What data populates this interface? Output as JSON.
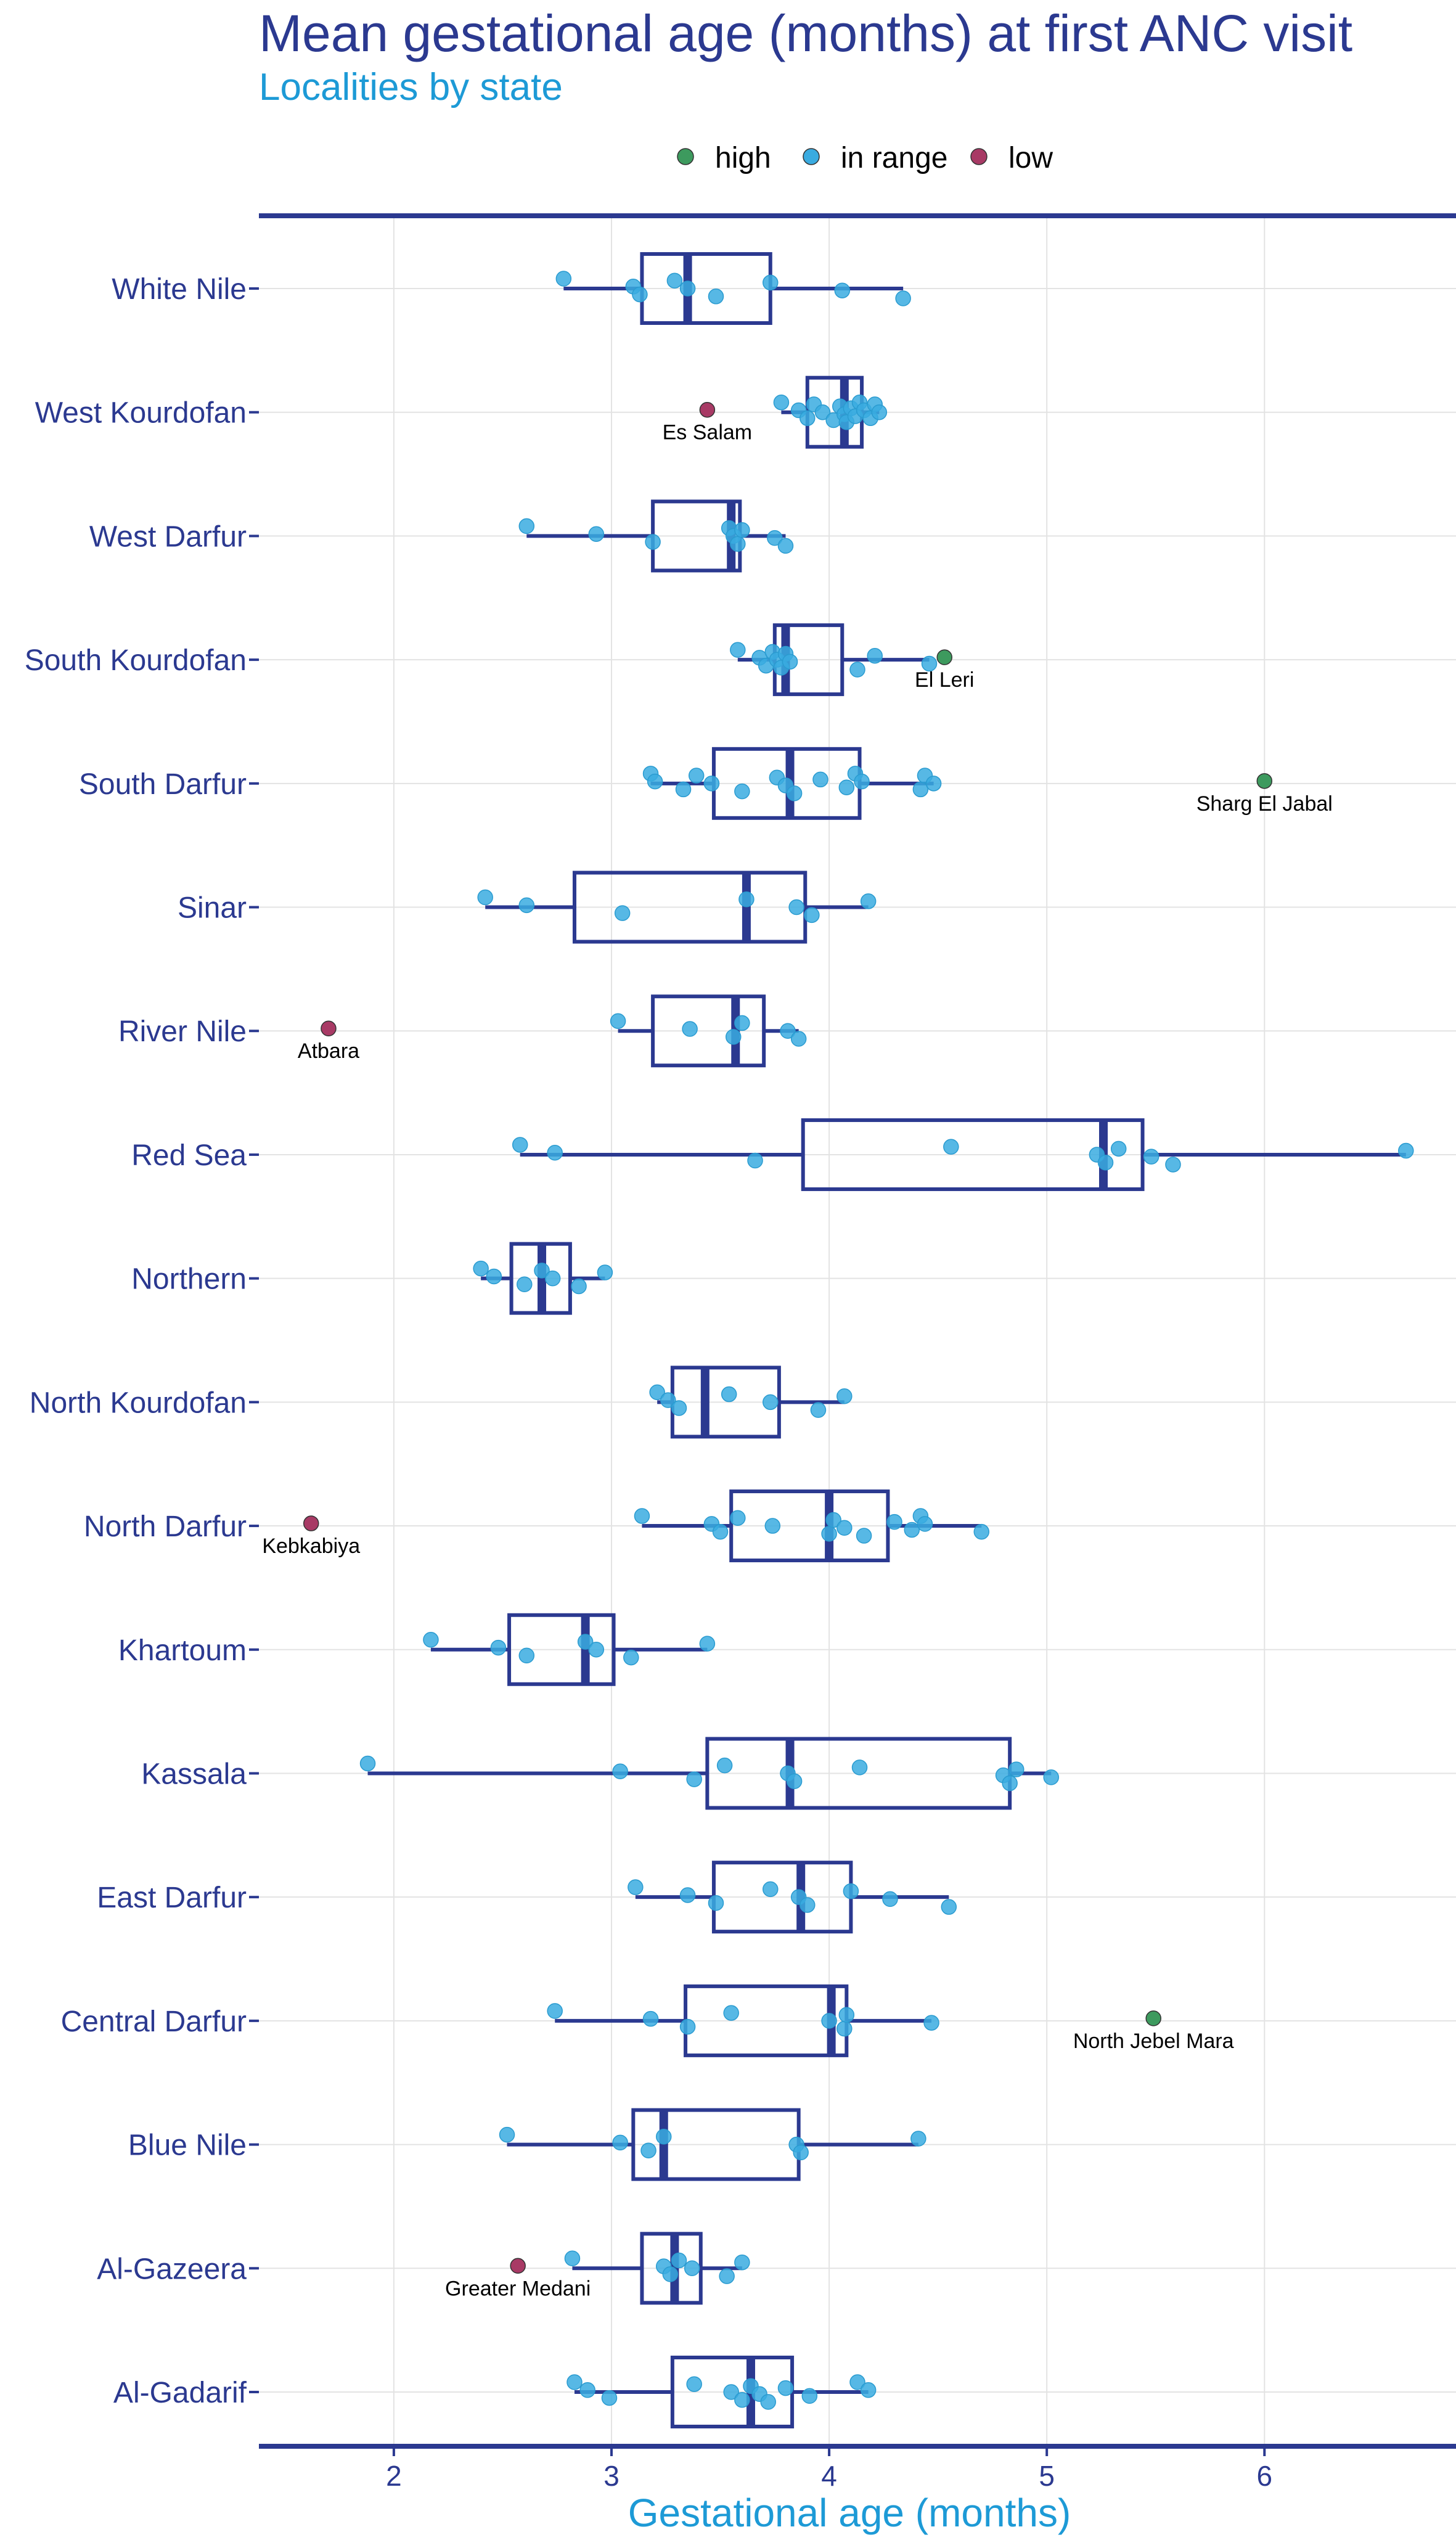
{
  "chart_data": {
    "type": "box",
    "title": "Mean gestational age (months) at first ANC visit",
    "subtitle": "Localities by state",
    "xlabel": "Gestational age (months)",
    "ylabel": "",
    "xlim": [
      1.38,
      6.88
    ],
    "xticks": [
      2,
      3,
      4,
      5,
      6
    ],
    "grid": true,
    "legend": {
      "position": "top",
      "entries": [
        {
          "name": "high",
          "color": "#3d9a5e"
        },
        {
          "name": "in range",
          "color": "#3aabe0"
        },
        {
          "name": "low",
          "color": "#a83a65"
        }
      ]
    },
    "colors": {
      "box": "#2b3990",
      "in_range": "#3aabe0",
      "high": "#3d9a5e",
      "low": "#a83a65"
    },
    "categories": [
      "White Nile",
      "West Kourdofan",
      "West Darfur",
      "South Kourdofan",
      "South Darfur",
      "Sinar",
      "River Nile",
      "Red Sea",
      "Northern",
      "North Kourdofan",
      "North Darfur",
      "Khartoum",
      "Kassala",
      "East Darfur",
      "Central Darfur",
      "Blue Nile",
      "Al-Gazeera",
      "Al-Gadarif"
    ],
    "boxes": [
      {
        "state": "White Nile",
        "whisker_low": 2.78,
        "q1": 3.14,
        "median": 3.35,
        "q3": 3.73,
        "whisker_high": 4.34,
        "points": [
          2.78,
          3.1,
          3.13,
          3.29,
          3.35,
          3.48,
          3.73,
          4.06,
          4.34
        ]
      },
      {
        "state": "West Kourdofan",
        "whisker_low": 3.78,
        "q1": 3.9,
        "median": 4.07,
        "q3": 4.15,
        "whisker_high": 4.23,
        "points": [
          3.78,
          3.86,
          3.9,
          3.93,
          3.97,
          4.02,
          4.05,
          4.07,
          4.08,
          4.1,
          4.12,
          4.14,
          4.16,
          4.19,
          4.21,
          4.23
        ]
      },
      {
        "state": "West Darfur",
        "whisker_low": 2.61,
        "q1": 3.19,
        "median": 3.55,
        "q3": 3.59,
        "whisker_high": 3.8,
        "points": [
          2.61,
          2.93,
          3.19,
          3.54,
          3.56,
          3.58,
          3.6,
          3.75,
          3.8
        ]
      },
      {
        "state": "South Kourdofan",
        "whisker_low": 3.58,
        "q1": 3.75,
        "median": 3.8,
        "q3": 4.06,
        "whisker_high": 4.46,
        "points": [
          3.58,
          3.68,
          3.71,
          3.74,
          3.76,
          3.78,
          3.8,
          3.82,
          4.13,
          4.21,
          4.46
        ]
      },
      {
        "state": "South Darfur",
        "whisker_low": 3.18,
        "q1": 3.47,
        "median": 3.82,
        "q3": 4.14,
        "whisker_high": 4.48,
        "points": [
          3.18,
          3.2,
          3.33,
          3.39,
          3.46,
          3.6,
          3.76,
          3.8,
          3.84,
          3.96,
          4.08,
          4.12,
          4.15,
          4.42,
          4.44,
          4.48
        ]
      },
      {
        "state": "Sinar",
        "whisker_low": 2.42,
        "q1": 2.83,
        "median": 3.62,
        "q3": 3.89,
        "whisker_high": 4.18,
        "points": [
          2.42,
          2.61,
          3.05,
          3.62,
          3.85,
          3.92,
          4.18
        ]
      },
      {
        "state": "River Nile",
        "whisker_low": 3.03,
        "q1": 3.19,
        "median": 3.57,
        "q3": 3.7,
        "whisker_high": 3.86,
        "points": [
          3.03,
          3.36,
          3.56,
          3.6,
          3.81,
          3.86
        ]
      },
      {
        "state": "Red Sea",
        "whisker_low": 2.58,
        "q1": 3.88,
        "median": 5.26,
        "q3": 5.44,
        "whisker_high": 6.65,
        "points": [
          2.58,
          2.74,
          3.66,
          4.56,
          5.23,
          5.27,
          5.33,
          5.48,
          5.58,
          6.65
        ]
      },
      {
        "state": "Northern",
        "whisker_low": 2.4,
        "q1": 2.54,
        "median": 2.68,
        "q3": 2.81,
        "whisker_high": 2.97,
        "points": [
          2.4,
          2.46,
          2.6,
          2.68,
          2.73,
          2.85,
          2.97
        ]
      },
      {
        "state": "North Kourdofan",
        "whisker_low": 3.21,
        "q1": 3.28,
        "median": 3.43,
        "q3": 3.77,
        "whisker_high": 4.07,
        "points": [
          3.21,
          3.26,
          3.31,
          3.54,
          3.73,
          3.95,
          4.07
        ]
      },
      {
        "state": "North Darfur",
        "whisker_low": 3.14,
        "q1": 3.55,
        "median": 4.0,
        "q3": 4.27,
        "whisker_high": 4.7,
        "points": [
          3.14,
          3.46,
          3.5,
          3.58,
          3.74,
          4.0,
          4.02,
          4.07,
          4.16,
          4.3,
          4.38,
          4.42,
          4.44,
          4.7
        ]
      },
      {
        "state": "Khartoum",
        "whisker_low": 2.17,
        "q1": 2.53,
        "median": 2.88,
        "q3": 3.01,
        "whisker_high": 3.44,
        "points": [
          2.17,
          2.48,
          2.61,
          2.88,
          2.93,
          3.09,
          3.44
        ]
      },
      {
        "state": "Kassala",
        "whisker_low": 1.88,
        "q1": 3.44,
        "median": 3.82,
        "q3": 4.83,
        "whisker_high": 5.02,
        "points": [
          1.88,
          3.04,
          3.38,
          3.52,
          3.81,
          3.84,
          4.14,
          4.8,
          4.83,
          4.86,
          5.02
        ]
      },
      {
        "state": "East Darfur",
        "whisker_low": 3.11,
        "q1": 3.47,
        "median": 3.87,
        "q3": 4.1,
        "whisker_high": 4.55,
        "points": [
          3.11,
          3.35,
          3.48,
          3.73,
          3.86,
          3.9,
          4.1,
          4.28,
          4.55
        ]
      },
      {
        "state": "Central Darfur",
        "whisker_low": 2.74,
        "q1": 3.34,
        "median": 4.01,
        "q3": 4.08,
        "whisker_high": 4.47,
        "points": [
          2.74,
          3.18,
          3.35,
          3.55,
          4.0,
          4.07,
          4.08,
          4.47
        ]
      },
      {
        "state": "Blue Nile",
        "whisker_low": 2.52,
        "q1": 3.1,
        "median": 3.24,
        "q3": 3.86,
        "whisker_high": 4.41,
        "points": [
          2.52,
          3.04,
          3.17,
          3.24,
          3.85,
          3.87,
          4.41
        ]
      },
      {
        "state": "Al-Gazeera",
        "whisker_low": 2.82,
        "q1": 3.14,
        "median": 3.29,
        "q3": 3.41,
        "whisker_high": 3.6,
        "points": [
          2.82,
          3.24,
          3.27,
          3.31,
          3.37,
          3.53,
          3.6
        ]
      },
      {
        "state": "Al-Gadarif",
        "whisker_low": 2.83,
        "q1": 3.28,
        "median": 3.64,
        "q3": 3.83,
        "whisker_high": 4.18,
        "points": [
          2.83,
          2.89,
          2.99,
          3.38,
          3.55,
          3.6,
          3.64,
          3.68,
          3.72,
          3.8,
          3.91,
          4.13,
          4.18
        ]
      }
    ],
    "outliers": [
      {
        "state": "West Kourdofan",
        "x": 3.44,
        "category": "low",
        "label": "Es Salam"
      },
      {
        "state": "South Kourdofan",
        "x": 4.53,
        "category": "high",
        "label": "El Leri"
      },
      {
        "state": "South Darfur",
        "x": 6.0,
        "category": "high",
        "label": "Sharg El Jabal"
      },
      {
        "state": "River Nile",
        "x": 1.7,
        "category": "low",
        "label": "Atbara"
      },
      {
        "state": "North Darfur",
        "x": 1.62,
        "category": "low",
        "label": "Kebkabiya"
      },
      {
        "state": "Central Darfur",
        "x": 5.49,
        "category": "high",
        "label": "North Jebel Mara"
      },
      {
        "state": "Al-Gazeera",
        "x": 2.57,
        "category": "low",
        "label": "Greater Medani"
      }
    ]
  }
}
